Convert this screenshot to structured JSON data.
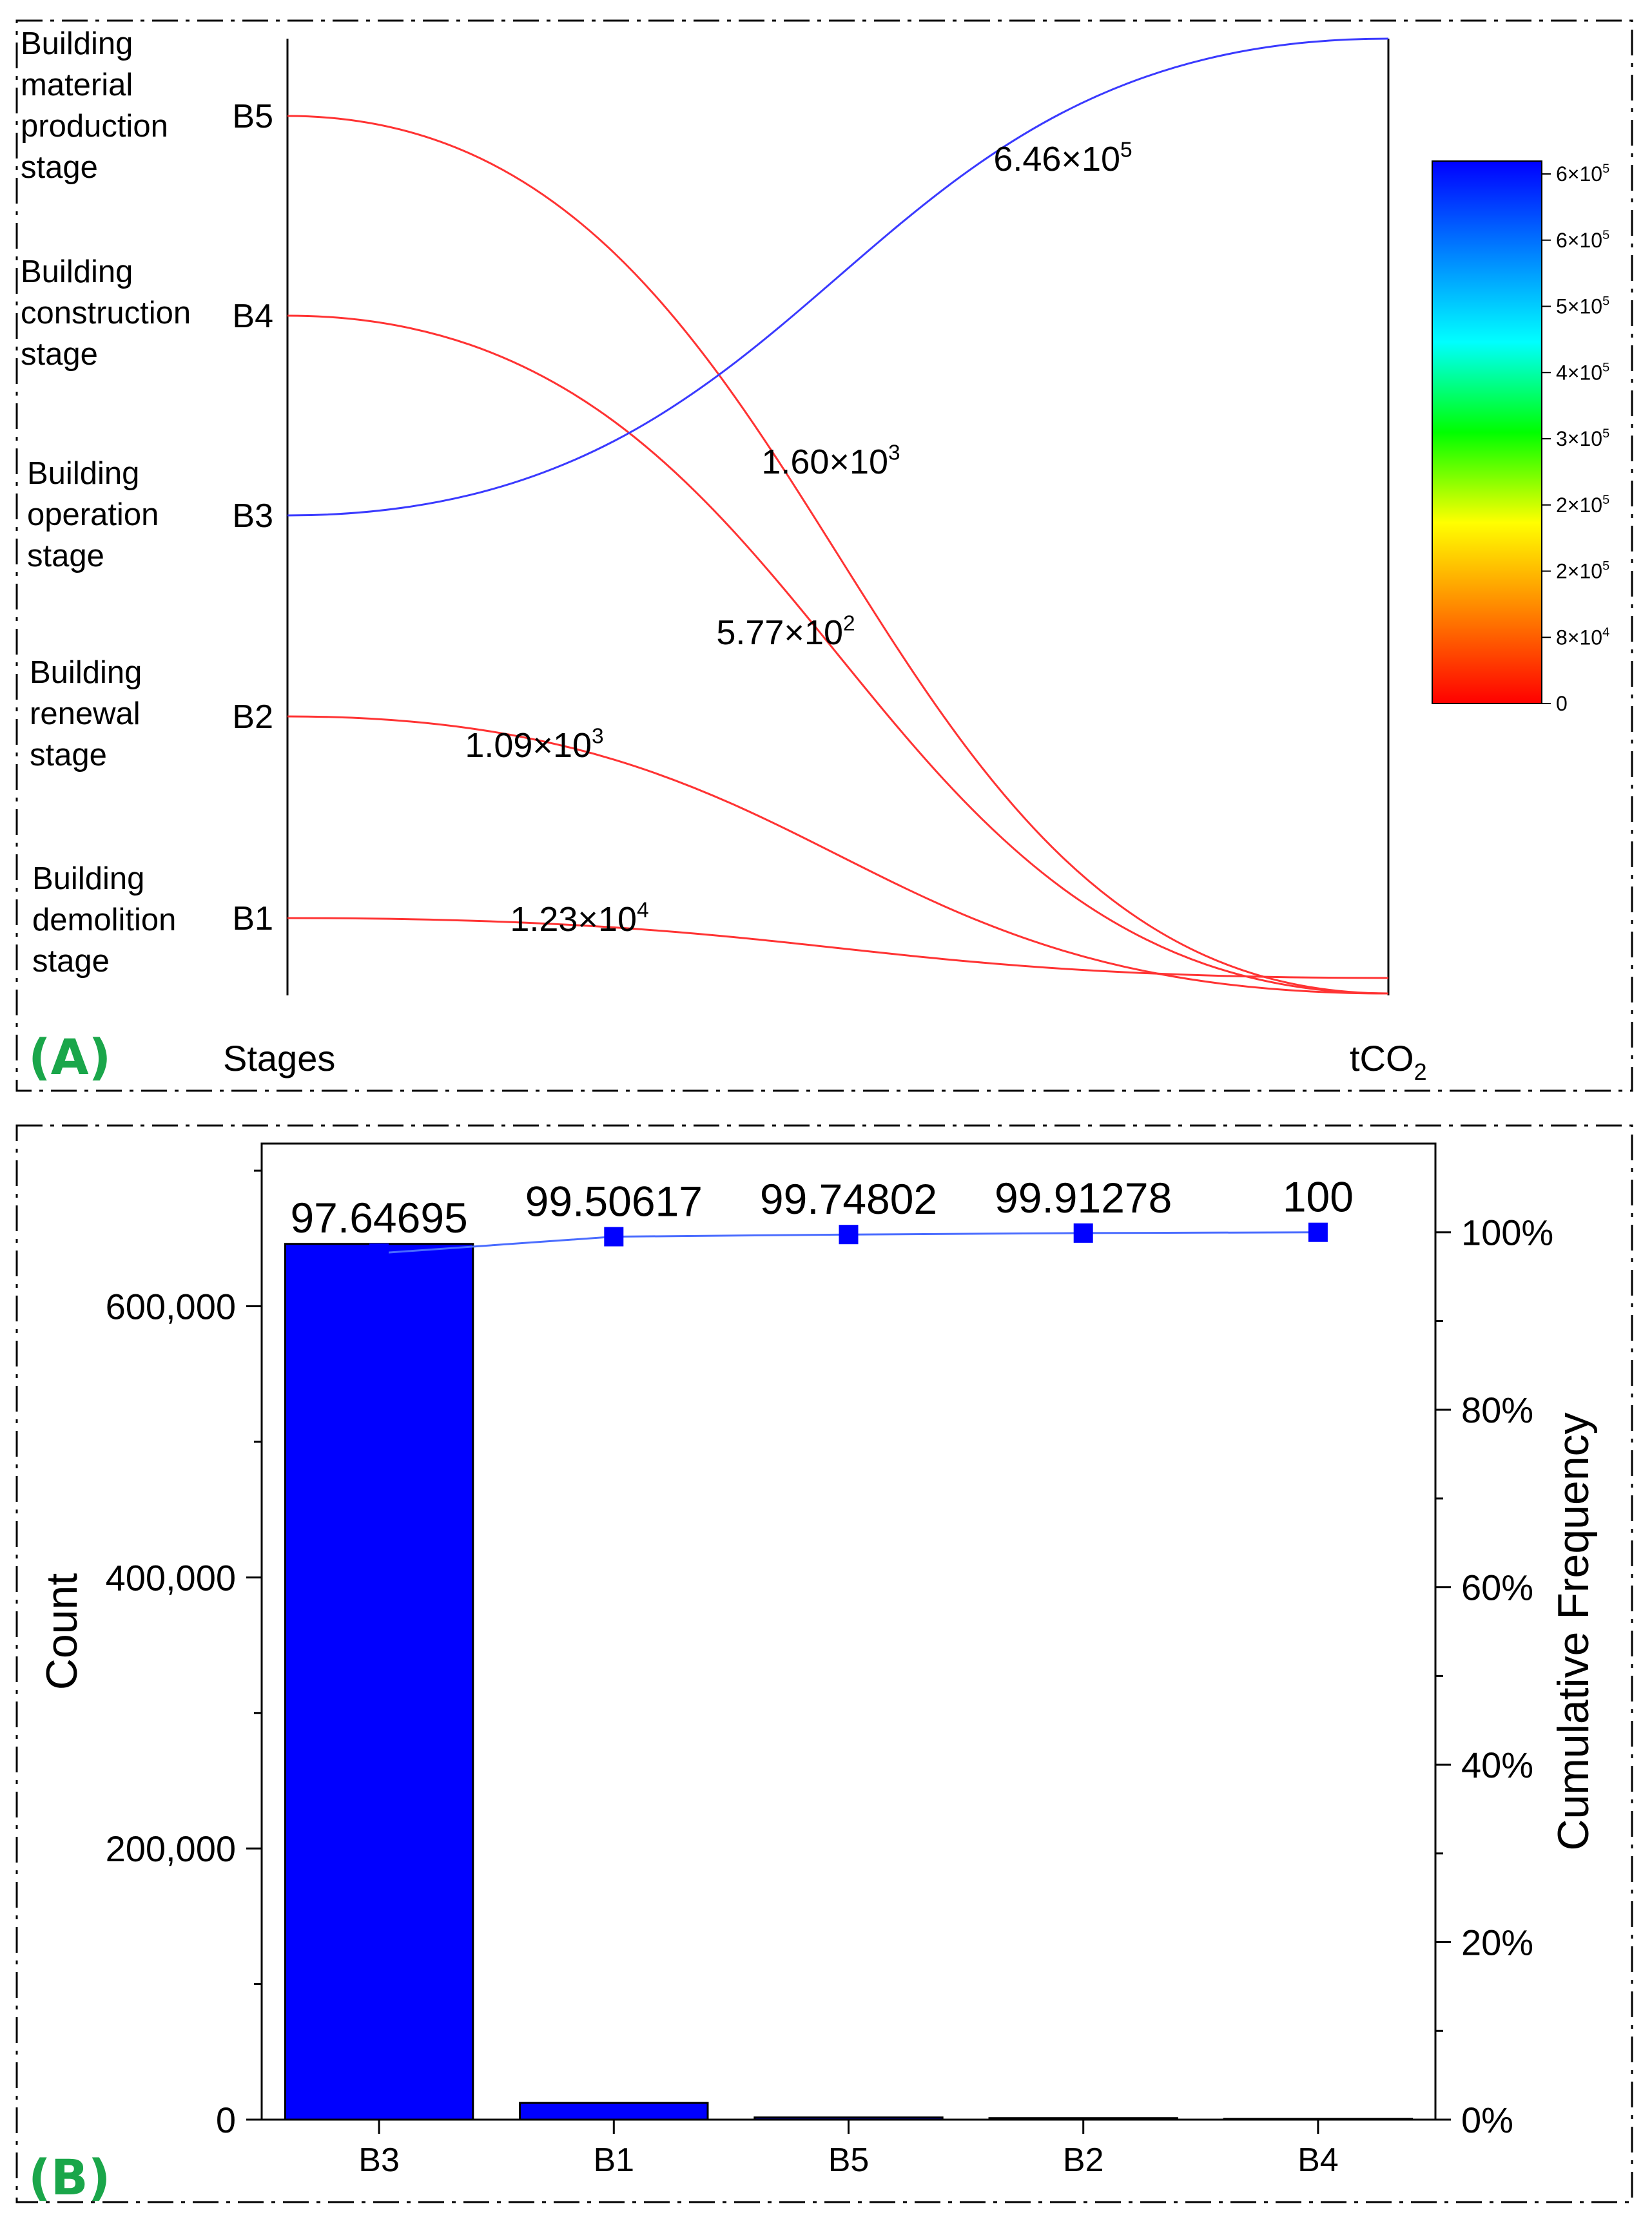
{
  "panel_a": {
    "label": "(A)",
    "stage_names": [
      {
        "code": "B5",
        "lines": [
          "Building",
          "material",
          "production",
          "stage"
        ]
      },
      {
        "code": "B4",
        "lines": [
          "Building",
          "construction",
          "stage"
        ]
      },
      {
        "code": "B3",
        "lines": [
          "Building",
          "operation",
          "stage"
        ]
      },
      {
        "code": "B2",
        "lines": [
          "Building",
          "renewal",
          "stage"
        ]
      },
      {
        "code": "B1",
        "lines": [
          "Building",
          "demolition",
          "stage"
        ]
      }
    ],
    "left_axis_title": "Stages",
    "right_axis_title": "tCO",
    "right_axis_subscript": "2",
    "colorbar": {
      "ticks": [
        {
          "mantissa": "6×10",
          "exp": "5"
        },
        {
          "mantissa": "6×10",
          "exp": "5"
        },
        {
          "mantissa": "5×10",
          "exp": "5"
        },
        {
          "mantissa": "4×10",
          "exp": "5"
        },
        {
          "mantissa": "3×10",
          "exp": "5"
        },
        {
          "mantissa": "2×10",
          "exp": "5"
        },
        {
          "mantissa": "2×10",
          "exp": "5"
        },
        {
          "mantissa": "8×10",
          "exp": "4"
        },
        {
          "mantissa": "0",
          "exp": ""
        }
      ],
      "colors": [
        "#ff0000",
        "#ff8000",
        "#ffff00",
        "#00ff00",
        "#00ffff",
        "#0080ff",
        "#0000ff"
      ]
    }
  },
  "panel_b": {
    "label": "(B)"
  },
  "chart_data": [
    {
      "type": "flow",
      "title": "",
      "source_axis_label": "Stages",
      "target_axis_label": "tCO2",
      "flows": [
        {
          "source": "B5",
          "label_mantissa": "1.60×10",
          "label_exp": "3",
          "value": 1600,
          "color": "#ff3333"
        },
        {
          "source": "B4",
          "label_mantissa": "5.77×10",
          "label_exp": "2",
          "value": 577,
          "color": "#ff3333"
        },
        {
          "source": "B3",
          "label_mantissa": "6.46×10",
          "label_exp": "5",
          "value": 646000,
          "color": "#3a3aff"
        },
        {
          "source": "B2",
          "label_mantissa": "1.09×10",
          "label_exp": "3",
          "value": 1090,
          "color": "#ff3333"
        },
        {
          "source": "B1",
          "label_mantissa": "1.23×10",
          "label_exp": "4",
          "value": 12300,
          "color": "#ff3333"
        }
      ],
      "colorbar_range": [
        0,
        650000
      ]
    },
    {
      "type": "bar",
      "title": "",
      "categories": [
        "B3",
        "B1",
        "B5",
        "B2",
        "B4"
      ],
      "series": [
        {
          "name": "Count",
          "axis": "left",
          "values": [
            646000,
            12300,
            1600,
            1090,
            577
          ],
          "color": "#0000ff"
        },
        {
          "name": "Cumulative Frequency",
          "axis": "right",
          "kind": "line",
          "values": [
            97.64695,
            99.50617,
            99.74802,
            99.91278,
            100
          ],
          "labels": [
            "97.64695",
            "99.50617",
            "99.74802",
            "99.91278",
            "100"
          ],
          "color": "#0000ff"
        }
      ],
      "ylabel": "Count",
      "y2label": "Cumulative Frequency",
      "ylim": [
        0,
        720000
      ],
      "y_ticks": [
        0,
        200000,
        400000,
        600000
      ],
      "y_tick_labels": [
        "0",
        "200,000",
        "400,000",
        "600,000"
      ],
      "y2lim": [
        0,
        110
      ],
      "y2_ticks": [
        0,
        20,
        40,
        60,
        80,
        100
      ],
      "y2_tick_labels": [
        "0%",
        "20%",
        "40%",
        "60%",
        "80%",
        "100%"
      ]
    }
  ]
}
